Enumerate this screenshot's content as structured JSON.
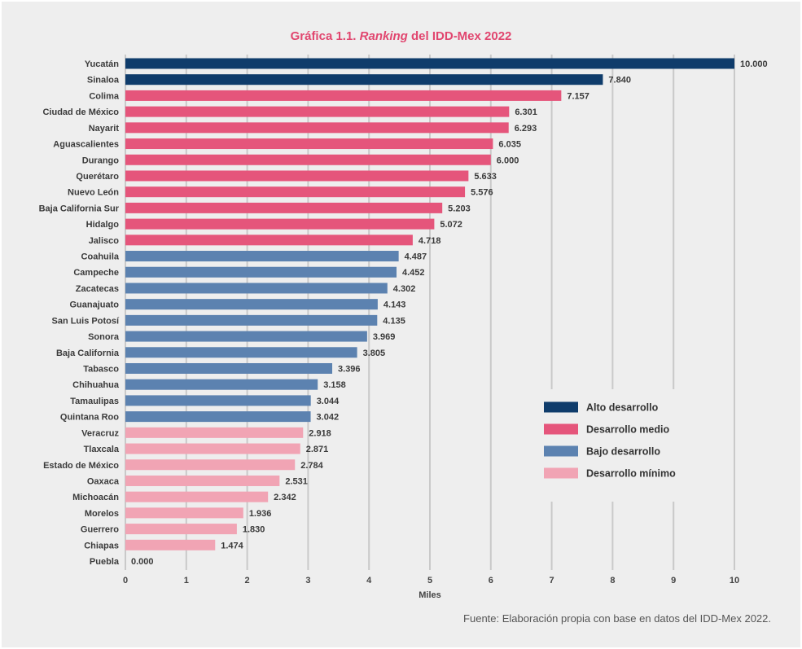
{
  "chart_data": {
    "type": "bar",
    "orientation": "horizontal",
    "title": {
      "prefix": "Gráfica 1.1.",
      "emphasis": "Ranking",
      "suffix": "del IDD-Mex 2022"
    },
    "categories": [
      "Yucatán",
      "Sinaloa",
      "Colima",
      "Ciudad de México",
      "Nayarit",
      "Aguascalientes",
      "Durango",
      "Querétaro",
      "Nuevo León",
      "Baja California Sur",
      "Hidalgo",
      "Jalisco",
      "Coahuila",
      "Campeche",
      "Zacatecas",
      "Guanajuato",
      "San Luis Potosí",
      "Sonora",
      "Baja California",
      "Tabasco",
      "Chihuahua",
      "Tamaulipas",
      "Quintana Roo",
      "Veracruz",
      "Tlaxcala",
      "Estado de México",
      "Oaxaca",
      "Michoacán",
      "Morelos",
      "Guerrero",
      "Chiapas",
      "Puebla"
    ],
    "values": [
      10,
      7.84,
      7.157,
      6.301,
      6.293,
      6.035,
      6,
      5.633,
      5.576,
      5.203,
      5.072,
      4.718,
      4.487,
      4.452,
      4.302,
      4.143,
      4.135,
      3.969,
      3.805,
      3.396,
      3.158,
      3.044,
      3.042,
      2.918,
      2.871,
      2.784,
      2.531,
      2.342,
      1.936,
      1.83,
      1.474,
      0
    ],
    "value_labels": [
      "10.000",
      "7.840",
      "7.157",
      "6.301",
      "6.293",
      "6.035",
      "6.000",
      "5.633",
      "5.576",
      "5.203",
      "5.072",
      "4.718",
      "4.487",
      "4.452",
      "4.302",
      "4.143",
      "4.135",
      "3.969",
      "3.805",
      "3.396",
      "3.158",
      "3.044",
      "3.042",
      "2.918",
      "2.871",
      "2.784",
      "2.531",
      "2.342",
      "1.936",
      "1.830",
      "1.474",
      "0.000"
    ],
    "group_index": [
      0,
      0,
      1,
      1,
      1,
      1,
      1,
      1,
      1,
      1,
      1,
      1,
      2,
      2,
      2,
      2,
      2,
      2,
      2,
      2,
      2,
      2,
      2,
      3,
      3,
      3,
      3,
      3,
      3,
      3,
      3,
      3
    ],
    "legend": [
      {
        "name": "Alto desarrollo",
        "color": "#0f3c6b"
      },
      {
        "name": "Desarrollo medio",
        "color": "#e5557b"
      },
      {
        "name": "Bajo desarrollo",
        "color": "#5c82b0"
      },
      {
        "name": "Desarrollo mínimo",
        "color": "#f1a4b4"
      }
    ],
    "legend_position": "right",
    "xlabel": "Miles",
    "xlim": [
      0,
      10
    ],
    "xticks": [
      0,
      1,
      2,
      3,
      4,
      5,
      6,
      7,
      8,
      9,
      10
    ],
    "grid": true,
    "source": "Fuente: Elaboración propia con base en datos del IDD-Mex 2022."
  }
}
